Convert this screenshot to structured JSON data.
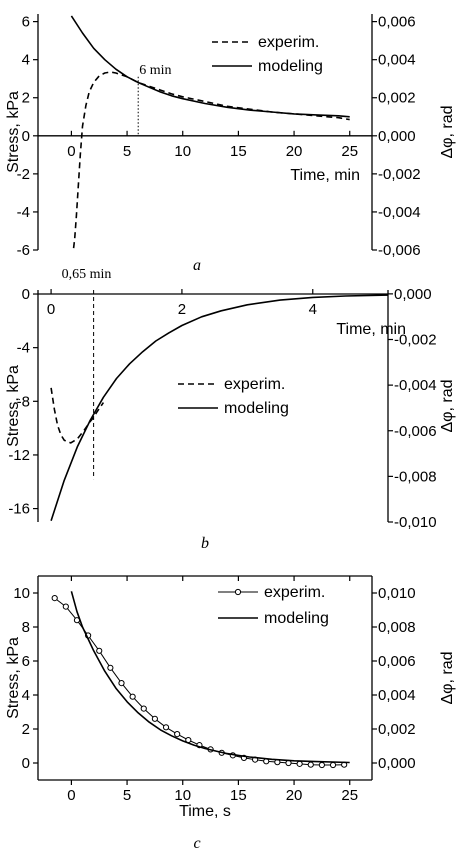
{
  "chart_data": [
    {
      "type": "line",
      "caption": "a",
      "xlabel": "Time, min",
      "ylabel": "Stress, kPa",
      "y2label": "Δφ, rad",
      "xlim": [
        -3,
        27
      ],
      "ylim": [
        -6,
        6.4
      ],
      "y2lim": [
        -0.006,
        0.0064
      ],
      "xticks": [
        0,
        5,
        10,
        15,
        20,
        25
      ],
      "yticks": [
        -6,
        -4,
        -2,
        0,
        2,
        4,
        6
      ],
      "y2ticks": [
        "-0,006",
        "-0,004",
        "-0,002",
        "0,000",
        "0,002",
        "0,004",
        "0,006"
      ],
      "y2tick_values": [
        -0.006,
        -0.004,
        -0.002,
        0,
        0.002,
        0.004,
        0.006
      ],
      "legend_position": "top-right",
      "annotation": {
        "text": "6 min",
        "x": 6
      },
      "series": [
        {
          "name": "experim.",
          "style": "dashed",
          "x": [
            0.2,
            0.3,
            0.45,
            0.6,
            0.8,
            1.0,
            1.3,
            1.6,
            2.0,
            2.5,
            3.0,
            3.5,
            4.0,
            4.5,
            5.0,
            6.0,
            7,
            8,
            9,
            10,
            12,
            14,
            16,
            18,
            20,
            22,
            24,
            25
          ],
          "y": [
            -5.9,
            -5.4,
            -4.2,
            -2.8,
            -1.0,
            0.5,
            1.6,
            2.3,
            2.8,
            3.15,
            3.3,
            3.35,
            3.3,
            3.2,
            3.1,
            2.8,
            2.6,
            2.4,
            2.2,
            2.05,
            1.8,
            1.55,
            1.4,
            1.25,
            1.15,
            1.05,
            0.95,
            0.85
          ]
        },
        {
          "name": "modeling",
          "style": "solid",
          "x": [
            0,
            1,
            2,
            3,
            4,
            5,
            6,
            7,
            8,
            9,
            10,
            12,
            14,
            16,
            18,
            20,
            22,
            24,
            25
          ],
          "y": [
            6.3,
            5.4,
            4.6,
            4.0,
            3.5,
            3.1,
            2.8,
            2.55,
            2.3,
            2.1,
            1.95,
            1.7,
            1.5,
            1.35,
            1.25,
            1.15,
            1.1,
            1.05,
            1.0
          ]
        }
      ]
    },
    {
      "type": "line",
      "caption": "b",
      "xlabel": "Time, min",
      "ylabel": "Stress, kPa",
      "y2label": "Δφ, rad",
      "xlim": [
        -0.2,
        5.15
      ],
      "ylim": [
        -17,
        0.3
      ],
      "y2lim": [
        -0.01,
        0.00017
      ],
      "xticks": [
        0,
        2,
        4
      ],
      "yticks": [
        -16,
        -12,
        -8,
        -4,
        0
      ],
      "y2ticks": [
        "-0,010",
        "-0,008",
        "-0,006",
        "-0,004",
        "-0,002",
        "0,000"
      ],
      "y2tick_values": [
        -0.01,
        -0.008,
        -0.006,
        -0.004,
        -0.002,
        0
      ],
      "legend_position": "center-right",
      "annotation": {
        "text": "0,65 min",
        "x": 0.65
      },
      "series": [
        {
          "name": "experim.",
          "style": "dashed",
          "x": [
            0,
            0.05,
            0.1,
            0.15,
            0.2,
            0.3,
            0.4,
            0.5,
            0.6,
            0.65,
            0.7,
            0.8
          ],
          "y": [
            -7.0,
            -8.6,
            -9.8,
            -10.5,
            -10.9,
            -11.1,
            -10.8,
            -10.2,
            -9.5,
            -9.2,
            -8.8,
            -8.1
          ]
        },
        {
          "name": "modeling",
          "style": "solid",
          "x": [
            0,
            0.2,
            0.4,
            0.6,
            0.8,
            1.0,
            1.2,
            1.4,
            1.6,
            1.8,
            2.0,
            2.3,
            2.6,
            3.0,
            3.5,
            4.0,
            4.5,
            5.15
          ],
          "y": [
            -16.9,
            -13.9,
            -11.4,
            -9.4,
            -7.7,
            -6.3,
            -5.2,
            -4.3,
            -3.5,
            -2.9,
            -2.35,
            -1.7,
            -1.25,
            -0.8,
            -0.45,
            -0.25,
            -0.15,
            -0.08
          ]
        }
      ]
    },
    {
      "type": "line",
      "caption": "c",
      "xlabel": "Time, s",
      "ylabel": "Stress, kPa",
      "y2label": "Δφ, rad",
      "xlim": [
        -3,
        27
      ],
      "ylim": [
        -1,
        11
      ],
      "y2lim": [
        -0.001,
        0.011
      ],
      "xticks": [
        0,
        5,
        10,
        15,
        20,
        25
      ],
      "yticks": [
        0,
        2,
        4,
        6,
        8,
        10
      ],
      "y2ticks": [
        "0,000",
        "0,002",
        "0,004",
        "0,006",
        "0,008",
        "0,010"
      ],
      "y2tick_values": [
        0,
        0.002,
        0.004,
        0.006,
        0.008,
        0.01
      ],
      "legend_position": "top-right",
      "series": [
        {
          "name": "experim.",
          "style": "line-circle",
          "x": [
            -1.5,
            -0.5,
            0.5,
            1.5,
            2.5,
            3.5,
            4.5,
            5.5,
            6.5,
            7.5,
            8.5,
            9.5,
            10.5,
            11.5,
            12.5,
            13.5,
            14.5,
            15.5,
            16.5,
            17.5,
            18.5,
            19.5,
            20.5,
            21.5,
            22.5,
            23.5,
            24.5
          ],
          "y": [
            9.7,
            9.2,
            8.4,
            7.5,
            6.6,
            5.6,
            4.7,
            3.9,
            3.2,
            2.6,
            2.1,
            1.7,
            1.35,
            1.05,
            0.8,
            0.6,
            0.45,
            0.3,
            0.2,
            0.1,
            0.05,
            0.0,
            -0.05,
            -0.1,
            -0.12,
            -0.12,
            -0.1
          ]
        },
        {
          "name": "modeling",
          "style": "solid",
          "x": [
            0,
            0.5,
            1,
            1.5,
            2,
            3,
            4,
            5,
            6,
            7,
            8,
            9,
            10,
            11,
            12,
            13,
            14,
            15,
            16,
            18,
            20,
            22,
            25
          ],
          "y": [
            10.1,
            8.9,
            8.0,
            7.3,
            6.6,
            5.4,
            4.4,
            3.6,
            2.95,
            2.4,
            1.95,
            1.6,
            1.3,
            1.05,
            0.85,
            0.7,
            0.55,
            0.45,
            0.35,
            0.22,
            0.13,
            0.08,
            0.03
          ]
        }
      ]
    }
  ]
}
